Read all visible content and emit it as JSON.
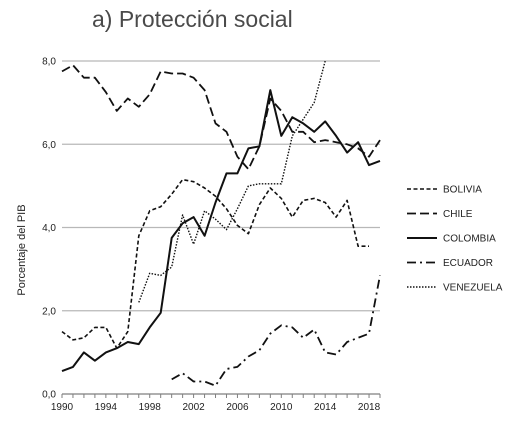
{
  "chart_data": {
    "type": "line",
    "title": "a) Protección social",
    "xlabel": "",
    "ylabel": "Porcentaje del PIB",
    "xlim": [
      1990,
      2019
    ],
    "ylim": [
      0,
      8
    ],
    "x_ticks": [
      "1990",
      "1994",
      "1998",
      "2002",
      "2006",
      "2010",
      "2014",
      "2018"
    ],
    "y_ticks": [
      "0,0",
      "2,0",
      "4,0",
      "6,0",
      "8,0"
    ],
    "grid": "horizontal",
    "legend_position": "right",
    "series": [
      {
        "name": "BOLIVIA",
        "style": "short-dash",
        "x": [
          1990,
          1991,
          1992,
          1993,
          1994,
          1995,
          1996,
          1997,
          1998,
          1999,
          2000,
          2001,
          2002,
          2003,
          2004,
          2005,
          2006,
          2007,
          2008,
          2009,
          2010,
          2011,
          2012,
          2013,
          2014,
          2015,
          2016,
          2017,
          2018
        ],
        "y": [
          1.5,
          1.3,
          1.35,
          1.6,
          1.6,
          1.1,
          1.5,
          3.8,
          4.4,
          4.5,
          4.8,
          5.15,
          5.1,
          4.95,
          4.75,
          4.45,
          4.05,
          3.85,
          4.55,
          4.95,
          4.7,
          4.25,
          4.65,
          4.7,
          4.6,
          4.25,
          4.65,
          3.55,
          3.55
        ]
      },
      {
        "name": "CHILE",
        "style": "long-dash",
        "x": [
          1990,
          1991,
          1992,
          1993,
          1994,
          1995,
          1996,
          1997,
          1998,
          1999,
          2000,
          2001,
          2002,
          2003,
          2004,
          2005,
          2006,
          2007,
          2008,
          2009,
          2010,
          2011,
          2012,
          2013,
          2014,
          2015,
          2016,
          2017,
          2018,
          2019
        ],
        "y": [
          7.75,
          7.9,
          7.6,
          7.6,
          7.25,
          6.8,
          7.1,
          6.9,
          7.2,
          7.75,
          7.7,
          7.7,
          7.6,
          7.3,
          6.5,
          6.3,
          5.7,
          5.4,
          5.95,
          7.1,
          6.8,
          6.3,
          6.3,
          6.05,
          6.1,
          6.05,
          6.0,
          5.9,
          5.7,
          6.1
        ]
      },
      {
        "name": "COLOMBIA",
        "style": "solid",
        "x": [
          1990,
          1991,
          1992,
          1993,
          1994,
          1995,
          1996,
          1997,
          1998,
          1999,
          2000,
          2001,
          2002,
          2003,
          2004,
          2005,
          2006,
          2007,
          2008,
          2009,
          2010,
          2011,
          2012,
          2013,
          2014,
          2015,
          2016,
          2017,
          2018,
          2019
        ],
        "y": [
          0.55,
          0.65,
          1.0,
          0.8,
          1.0,
          1.1,
          1.25,
          1.2,
          1.6,
          1.95,
          3.75,
          4.1,
          4.25,
          3.8,
          4.6,
          5.3,
          5.3,
          5.9,
          5.95,
          7.3,
          6.2,
          6.65,
          6.5,
          6.3,
          6.55,
          6.2,
          5.8,
          6.05,
          5.5,
          5.6
        ]
      },
      {
        "name": "ECUADOR",
        "style": "dash-dot",
        "x": [
          2000,
          2001,
          2002,
          2003,
          2004,
          2005,
          2006,
          2007,
          2008,
          2009,
          2010,
          2011,
          2012,
          2013,
          2014,
          2015,
          2016,
          2017,
          2018,
          2019
        ],
        "y": [
          0.35,
          0.5,
          0.3,
          0.3,
          0.2,
          0.6,
          0.65,
          0.9,
          1.05,
          1.45,
          1.65,
          1.6,
          1.35,
          1.55,
          1.0,
          0.95,
          1.25,
          1.35,
          1.45,
          2.85
        ]
      },
      {
        "name": "VENEZUELA",
        "style": "dotted",
        "x": [
          1997,
          1998,
          1999,
          2000,
          2001,
          2002,
          2003,
          2004,
          2005,
          2006,
          2007,
          2008,
          2009,
          2010,
          2011,
          2012,
          2013,
          2014
        ],
        "y": [
          2.2,
          2.9,
          2.85,
          3.05,
          4.3,
          3.6,
          4.4,
          4.2,
          3.95,
          4.45,
          5.0,
          5.05,
          5.05,
          5.05,
          6.2,
          6.6,
          7.0,
          8.0
        ]
      }
    ]
  }
}
